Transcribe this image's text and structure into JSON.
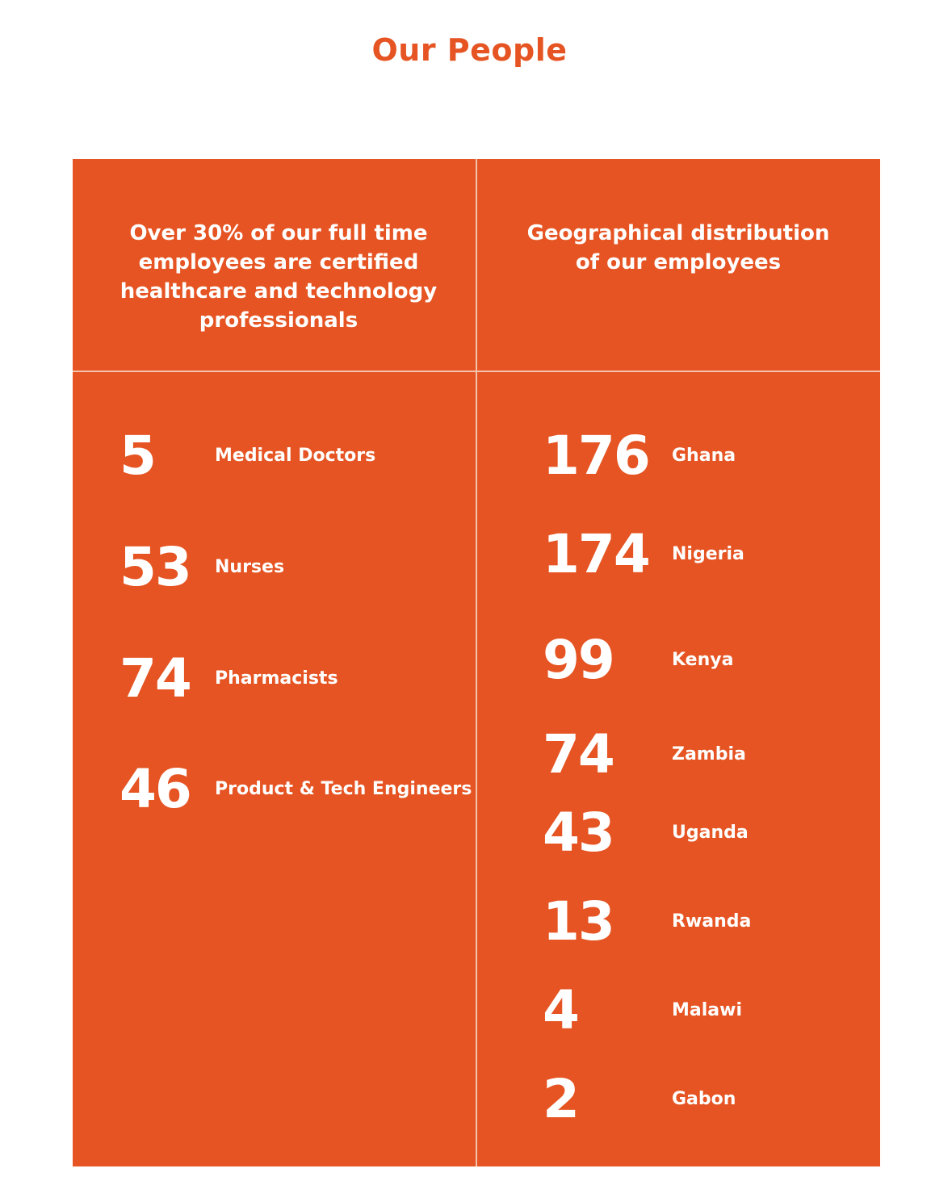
{
  "title": "Our People",
  "professionals": {
    "heading": "Over 30% of our full time employees are certified healthcare and technology professionals",
    "items": [
      {
        "value": "5",
        "label": "Medical Doctors"
      },
      {
        "value": "53",
        "label": "Nurses"
      },
      {
        "value": "74",
        "label": "Pharmacists"
      },
      {
        "value": "46",
        "label": "Product & Tech Engineers"
      }
    ]
  },
  "geography": {
    "heading": "Geographical distribution of our employees",
    "items": [
      {
        "value": "176",
        "label": "Ghana"
      },
      {
        "value": "174",
        "label": "Nigeria"
      },
      {
        "value": "99",
        "label": "Kenya"
      },
      {
        "value": "74",
        "label": "Zambia"
      },
      {
        "value": "43",
        "label": "Uganda"
      },
      {
        "value": "13",
        "label": "Rwanda"
      },
      {
        "value": "4",
        "label": "Malawi"
      },
      {
        "value": "2",
        "label": "Gabon"
      }
    ]
  },
  "colors": {
    "accent": "#e55422",
    "divider": "#f3c3ad",
    "text_on_accent": "#ffffff"
  }
}
